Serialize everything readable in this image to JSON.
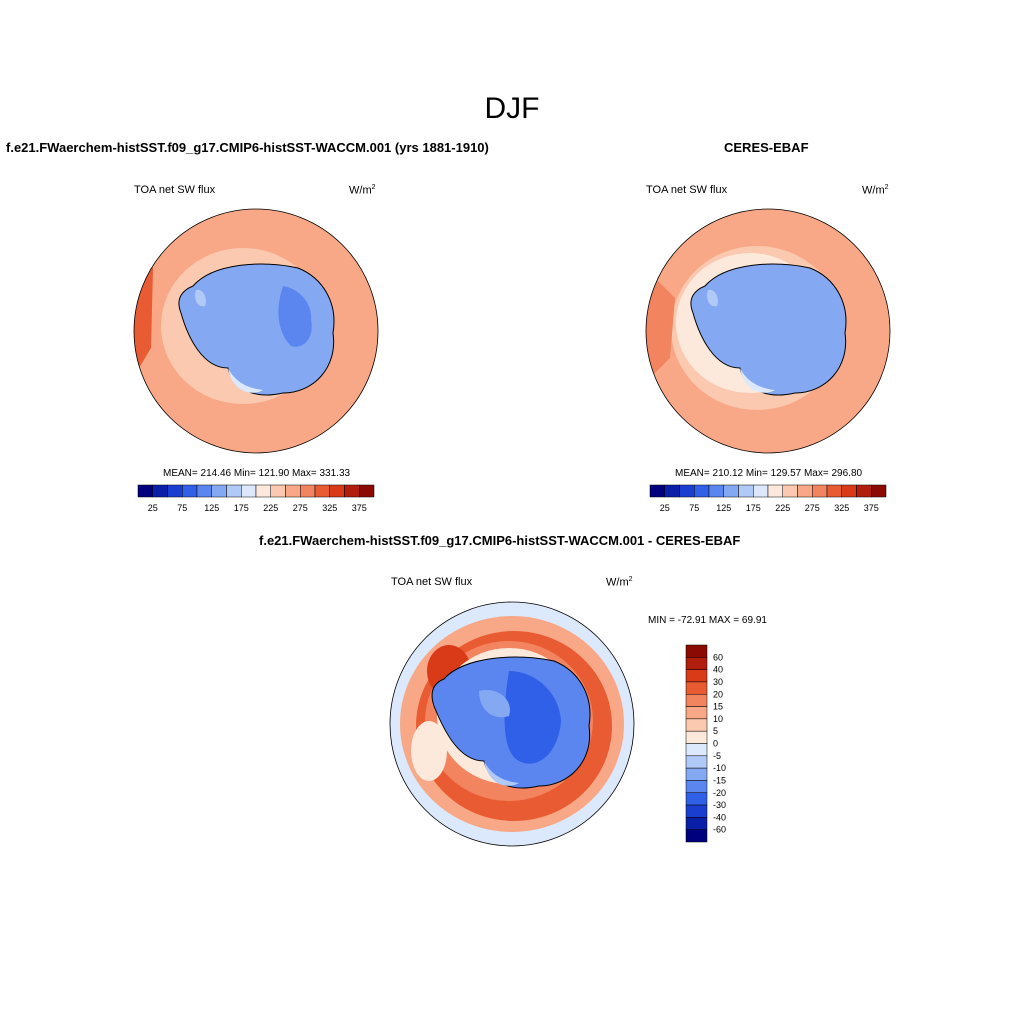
{
  "page_title": "DJF",
  "panels": [
    {
      "title": "f.e21.FWaerchem-histSST.f09_g17.CMIP6-histSST-WACCM.001 (yrs 1881-1910)",
      "left_label": "TOA net SW flux",
      "units": "W/m",
      "units_sup": "2",
      "stats": "MEAN= 214.46  Min= 121.90  Max= 331.33"
    },
    {
      "title": "CERES-EBAF",
      "left_label": "TOA net SW flux",
      "units": "W/m",
      "units_sup": "2",
      "stats": "MEAN= 210.12  Min= 129.57  Max= 296.80"
    },
    {
      "title": "f.e21.FWaerchem-histSST.f09_g17.CMIP6-histSST-WACCM.001 - CERES-EBAF",
      "left_label": "TOA net SW flux",
      "units": "W/m",
      "units_sup": "2",
      "stats": "MIN = -72.91 MAX =  69.91"
    }
  ],
  "colorbar_abs": {
    "colors": [
      "#00007f",
      "#0a1fa8",
      "#1a3fd0",
      "#3060e8",
      "#5b86f0",
      "#85a8f2",
      "#b0c9f6",
      "#dce8fb",
      "#fde9dc",
      "#fbc9b0",
      "#f8a887",
      "#f2845f",
      "#e95b33",
      "#d93a17",
      "#b21e0d",
      "#8b0a04"
    ],
    "tick_labels": [
      "25",
      "75",
      "125",
      "175",
      "225",
      "275",
      "325",
      "375"
    ]
  },
  "colorbar_diff": {
    "colors": [
      "#8b0a04",
      "#b21e0d",
      "#d93a17",
      "#e95b33",
      "#f2845f",
      "#f8a887",
      "#fbc9b0",
      "#fde9dc",
      "#dce8fb",
      "#b0c9f6",
      "#85a8f2",
      "#5b86f0",
      "#3060e8",
      "#1a3fd0",
      "#0a1fa8",
      "#00007f"
    ],
    "tick_labels": [
      "60",
      "40",
      "30",
      "20",
      "15",
      "10",
      "5",
      "0",
      "-5",
      "-10",
      "-15",
      "-20",
      "-30",
      "-40",
      "-60"
    ]
  }
}
